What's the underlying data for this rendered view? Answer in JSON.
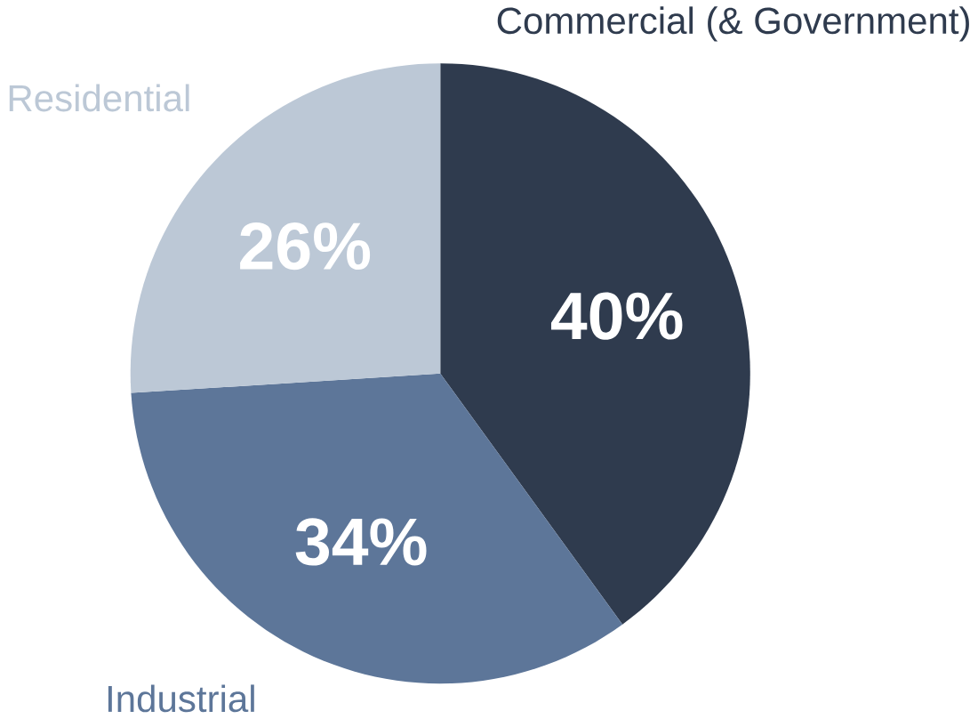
{
  "chart_data": {
    "type": "pie",
    "categories": [
      "Commercial (& Government)",
      "Industrial",
      "Residential"
    ],
    "values": [
      40,
      34,
      26
    ],
    "colors": [
      "#2f3b4e",
      "#5d7699",
      "#bcc8d6"
    ],
    "value_labels": [
      "40%",
      "34%",
      "26%"
    ]
  }
}
